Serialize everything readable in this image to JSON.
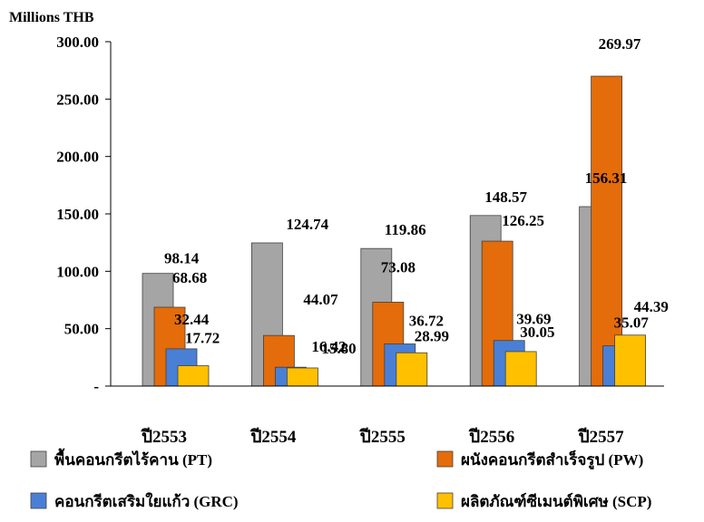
{
  "chart_data": {
    "type": "bar",
    "unit_label": "Millions THB",
    "categories": [
      "ปี2553",
      "ปี2554",
      "ปี2555",
      "ปี2556",
      "ปี2557"
    ],
    "series": [
      {
        "name": "พื้นคอนกรีตไร้คาน (PT)",
        "color": "#A5A5A5",
        "values": [
          98.14,
          124.74,
          119.86,
          148.57,
          156.31
        ]
      },
      {
        "name": "ผนังคอนกรีตสำเร็จรูป (PW)",
        "color": "#E46C0A",
        "values": [
          68.68,
          44.07,
          73.08,
          126.25,
          269.97
        ]
      },
      {
        "name": "คอนกรีตเสริมใยแก้ว (GRC)",
        "color": "#4A7FD6",
        "values": [
          32.44,
          16.42,
          36.72,
          39.69,
          35.07
        ]
      },
      {
        "name": "ผลิตภัณฑ์ซีเมนต์พิเศษ (SCP)",
        "color": "#FFC000",
        "values": [
          17.72,
          15.8,
          28.99,
          30.05,
          44.39
        ]
      }
    ],
    "data_labels": [
      [
        "98.14",
        "68.68",
        "32.44",
        "17.72"
      ],
      [
        "124.74",
        "44.07",
        "16.42",
        "15.80"
      ],
      [
        "119.86",
        "73.08",
        "36.72",
        "28.99"
      ],
      [
        "148.57",
        "126.25",
        "39.69",
        "30.05"
      ],
      [
        "156.31",
        "269.97",
        "35.07",
        "44.39"
      ]
    ],
    "y_ticks": [
      {
        "value": 0,
        "label": "-"
      },
      {
        "value": 50,
        "label": "50.00"
      },
      {
        "value": 100,
        "label": "100.00"
      },
      {
        "value": 150,
        "label": "150.00"
      },
      {
        "value": 200,
        "label": "200.00"
      },
      {
        "value": 250,
        "label": "250.00"
      },
      {
        "value": 300,
        "label": "300.00"
      }
    ],
    "ylim": [
      0,
      300
    ],
    "grid": false,
    "legend_position": "bottom"
  }
}
